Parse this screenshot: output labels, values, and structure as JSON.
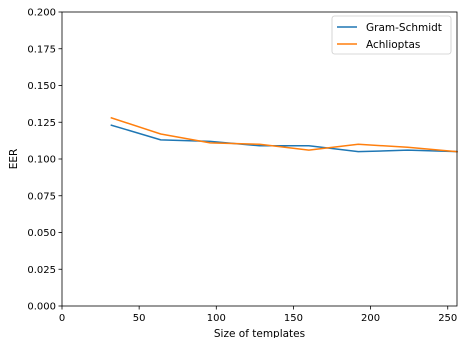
{
  "chart_data": {
    "type": "line",
    "title": "",
    "xlabel": "Size of templates",
    "ylabel": "EER",
    "xlim": [
      0,
      256
    ],
    "ylim": [
      0.0,
      0.2
    ],
    "xticks": [
      0,
      50,
      100,
      150,
      200,
      250
    ],
    "xtick_labels": [
      "0",
      "50",
      "100",
      "150",
      "200",
      "250"
    ],
    "yticks": [
      0.0,
      0.025,
      0.05,
      0.075,
      0.1,
      0.125,
      0.15,
      0.175,
      0.2
    ],
    "ytick_labels": [
      "0.000",
      "0.025",
      "0.050",
      "0.075",
      "0.100",
      "0.125",
      "0.150",
      "0.175",
      "0.200"
    ],
    "grid": false,
    "legend_position": "top-right",
    "series": [
      {
        "name": "Gram-Schmidt",
        "color": "#1f77b4",
        "x": [
          32,
          64,
          96,
          128,
          160,
          192,
          224,
          256
        ],
        "y": [
          0.123,
          0.113,
          0.112,
          0.109,
          0.109,
          0.105,
          0.106,
          0.105
        ]
      },
      {
        "name": "Achlioptas",
        "color": "#ff7f0e",
        "x": [
          32,
          64,
          96,
          128,
          160,
          192,
          224,
          256
        ],
        "y": [
          0.128,
          0.117,
          0.111,
          0.11,
          0.106,
          0.11,
          0.108,
          0.105
        ]
      }
    ]
  }
}
